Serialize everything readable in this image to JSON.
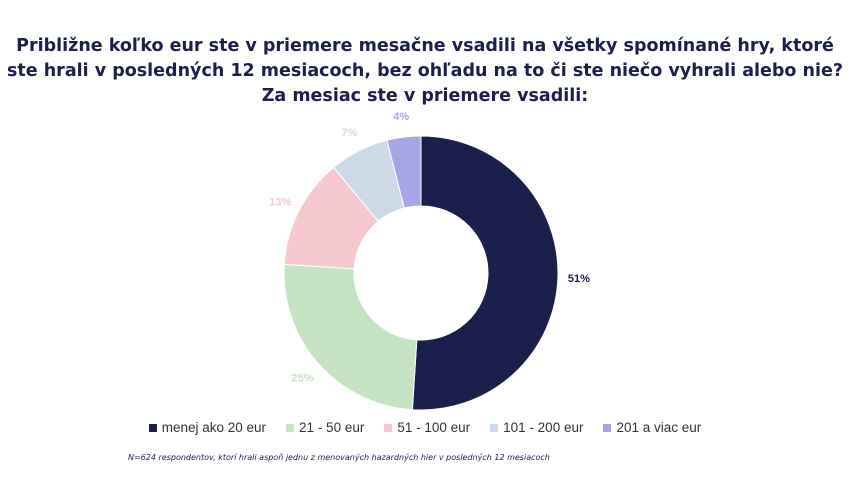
{
  "title_lines": [
    "Približne koľko eur ste v priemere mesačne vsadili na všetky spomínané hry, ktoré",
    "ste hrali v posledných 12 mesiacoch, bez ohľadu na to či ste niečo vyhrali alebo nie?",
    "Za mesiac ste v priemere vsadili:"
  ],
  "chart_data": {
    "type": "pie",
    "variant": "donut",
    "categories": [
      "menej ako 20 eur",
      "21 - 50 eur",
      "51 - 100 eur",
      "101 - 200 eur",
      "201 a viac eur"
    ],
    "values": [
      51,
      25,
      13,
      7,
      4
    ],
    "labels": [
      "51%",
      "25%",
      "13%",
      "7%",
      "4%"
    ],
    "colors": [
      "#1b1f4b",
      "#c5e3c3",
      "#f5c7cf",
      "#cdd9e6",
      "#a7a5e6"
    ],
    "label_colors": [
      "#1b1f4b",
      "#c5e3c3",
      "#f5c7cf",
      "#cdd9e6",
      "#a7a5e6"
    ],
    "start_angle_deg": 0,
    "direction": "clockwise",
    "legend_position": "bottom"
  },
  "footnote": "N=624 respondentov, ktorí hrali aspoň jednu z menovaných hazardných hier v posledných 12 mesiacoch"
}
